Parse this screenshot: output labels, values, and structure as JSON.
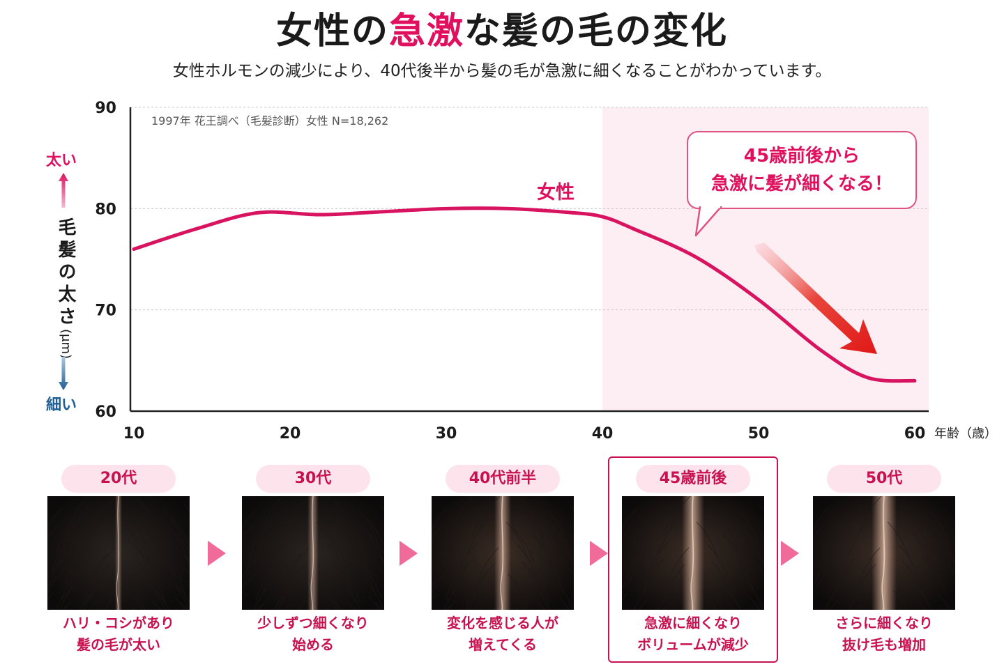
{
  "title": {
    "pre": "女性の",
    "accent": "急激",
    "post": "な髪の毛の変化"
  },
  "subtitle": "女性ホルモンの減少により、40代後半から髪の毛が急激に細くなることがわかっています。",
  "colors": {
    "accent": "#e0105f",
    "line": "#d8135f",
    "thin": "#1f5f95",
    "highlight_bg": "#fdeef4"
  },
  "y_axis": {
    "top_label": "太い",
    "bottom_label": "細い",
    "title": "毛髪の太さ",
    "unit": "(μm)"
  },
  "callout": {
    "line1": "45歳前後から",
    "line2": "急激に髪が細くなる！"
  },
  "chart_data": {
    "type": "line",
    "source_note": "1997年 花王調べ（毛髪診断）女性 N=18,262",
    "xlabel": "年齢（歳）",
    "ylabel": "毛髪の太さ（μm）",
    "xlim": [
      10,
      60
    ],
    "ylim": [
      60,
      90
    ],
    "xticks": [
      10,
      20,
      30,
      40,
      50,
      60
    ],
    "yticks": [
      60,
      70,
      80,
      90
    ],
    "grid": true,
    "highlight_range": [
      40,
      61
    ],
    "series": [
      {
        "name": "女性",
        "x": [
          10,
          14,
          18,
          22,
          26,
          30,
          34,
          38,
          40,
          42,
          46,
          50,
          54,
          57,
          60
        ],
        "y": [
          76,
          78,
          79.6,
          79.4,
          79.7,
          80,
          80,
          79.6,
          79.2,
          78,
          75.2,
          71,
          66,
          63.3,
          63
        ]
      }
    ]
  },
  "stages": [
    {
      "label": "20代",
      "caption1": "ハリ・コシがあり",
      "caption2": "髪の毛が太い",
      "density": 1.0
    },
    {
      "label": "30代",
      "caption1": "少しずつ細くなり",
      "caption2": "始める",
      "density": 0.85
    },
    {
      "label": "40代前半",
      "caption1": "変化を感じる人が",
      "caption2": "増えてくる",
      "density": 0.65
    },
    {
      "label": "45歳前後",
      "caption1": "急激に細くなり",
      "caption2": "ボリュームが減少",
      "density": 0.45
    },
    {
      "label": "50代",
      "caption1": "さらに細くなり",
      "caption2": "抜け毛も増加",
      "density": 0.35
    }
  ]
}
